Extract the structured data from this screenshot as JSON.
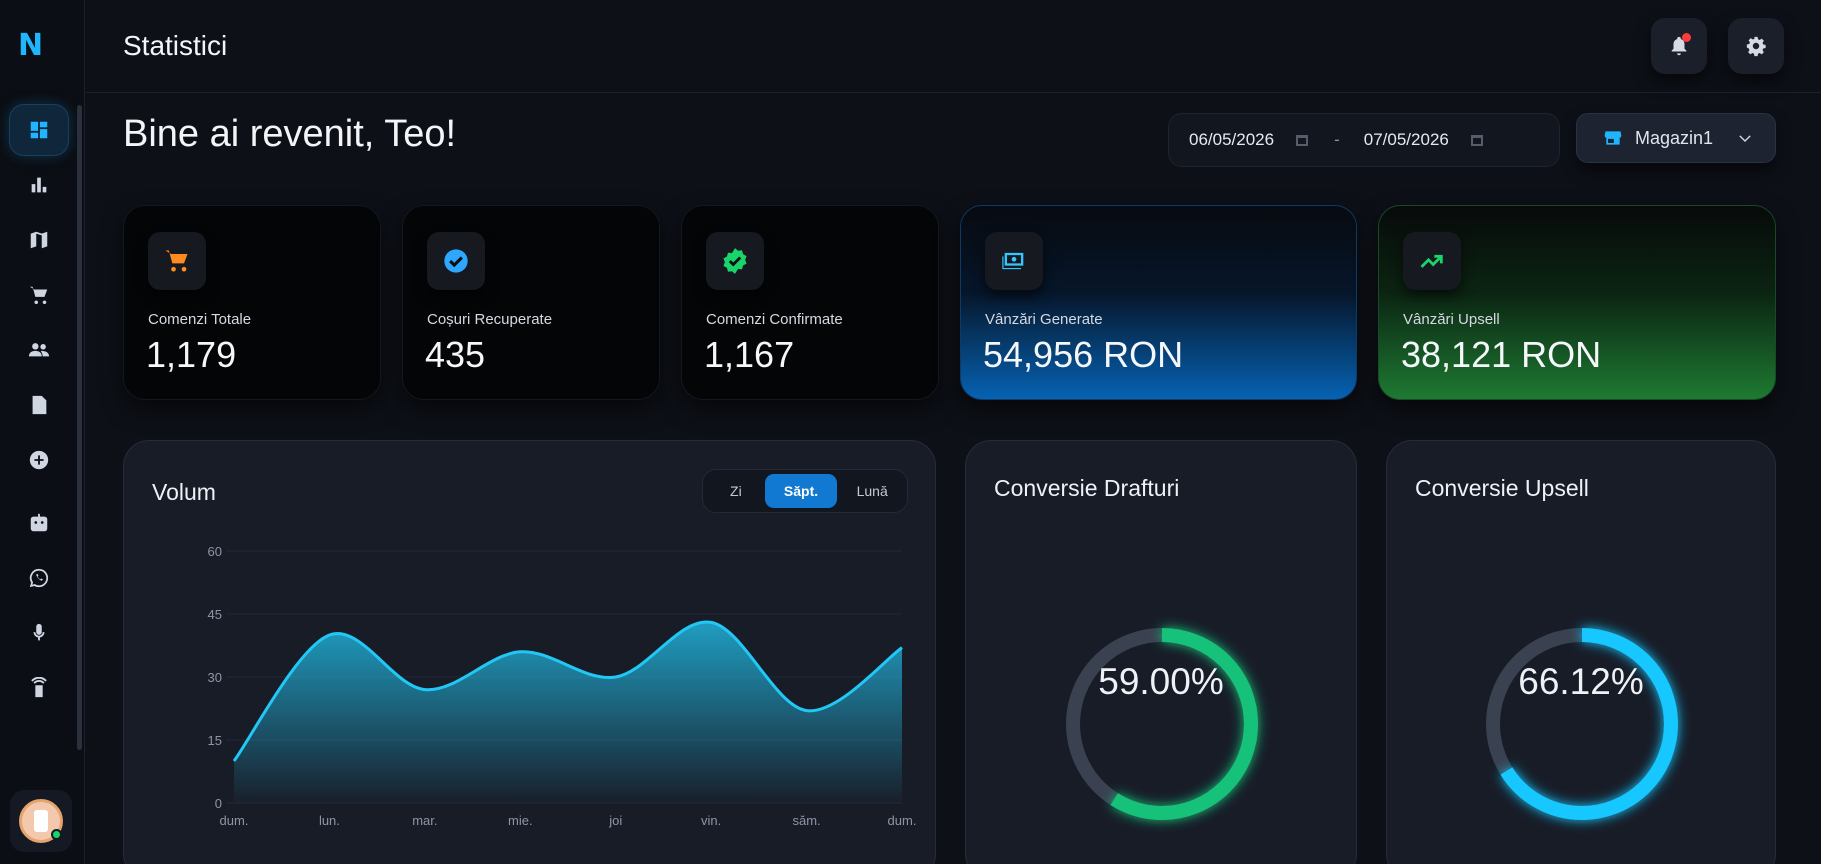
{
  "header": {
    "title": "Statistici"
  },
  "welcome": "Bine ai revenit, Teo!",
  "filters": {
    "date_from": "06/05/2026",
    "date_separator": "-",
    "date_to": "07/05/2026",
    "store": "Magazin1"
  },
  "sidebar": {
    "logo": "N",
    "items": [
      {
        "icon": "dashboard-icon",
        "active": true
      },
      {
        "icon": "bar-chart-icon"
      },
      {
        "icon": "map-icon"
      },
      {
        "icon": "cart-icon"
      },
      {
        "icon": "users-icon"
      },
      {
        "icon": "document-icon"
      },
      {
        "icon": "add-circle-icon"
      },
      {
        "icon": "robot-icon"
      },
      {
        "icon": "whatsapp-icon"
      },
      {
        "icon": "microphone-icon"
      },
      {
        "icon": "remote-icon"
      }
    ]
  },
  "stats": [
    {
      "label": "Comenzi Totale",
      "value": "1,179",
      "icon": "cart-icon",
      "icon_color": "#ff8a1f"
    },
    {
      "label": "Coșuri Recuperate",
      "value": "435",
      "icon": "check-circle-icon",
      "icon_color": "#2ea7ff"
    },
    {
      "label": "Comenzi Confirmate",
      "value": "1,167",
      "icon": "verified-badge-icon",
      "icon_color": "#19d46b"
    },
    {
      "label": "Vânzări Generate",
      "value": "54,956 RON",
      "icon": "money-icon",
      "icon_color": "#33c6ff"
    },
    {
      "label": "Vânzări Upsell",
      "value": "38,121 RON",
      "icon": "trending-up-icon",
      "icon_color": "#19d46b"
    }
  ],
  "volume": {
    "title": "Volum",
    "periods": [
      "Zi",
      "Săpt.",
      "Lună"
    ],
    "active_period": "Săpt."
  },
  "chart_data": {
    "type": "area",
    "title": "Volum",
    "categories": [
      "dum.",
      "lun.",
      "mar.",
      "mie.",
      "joi",
      "vin.",
      "săm.",
      "dum."
    ],
    "values": [
      10,
      40,
      27,
      36,
      30,
      43,
      22,
      37
    ],
    "ylim": [
      0,
      60
    ],
    "yticks": [
      0,
      15,
      30,
      45,
      60
    ],
    "grid": true,
    "color": "#22c8f5"
  },
  "conversions": [
    {
      "title": "Conversie Drafturi",
      "value": "59.00%",
      "fraction": 0.59,
      "color": "#17c27a"
    },
    {
      "title": "Conversie Upsell",
      "value": "66.12%",
      "fraction": 0.6612,
      "color": "#12c8ff"
    }
  ]
}
